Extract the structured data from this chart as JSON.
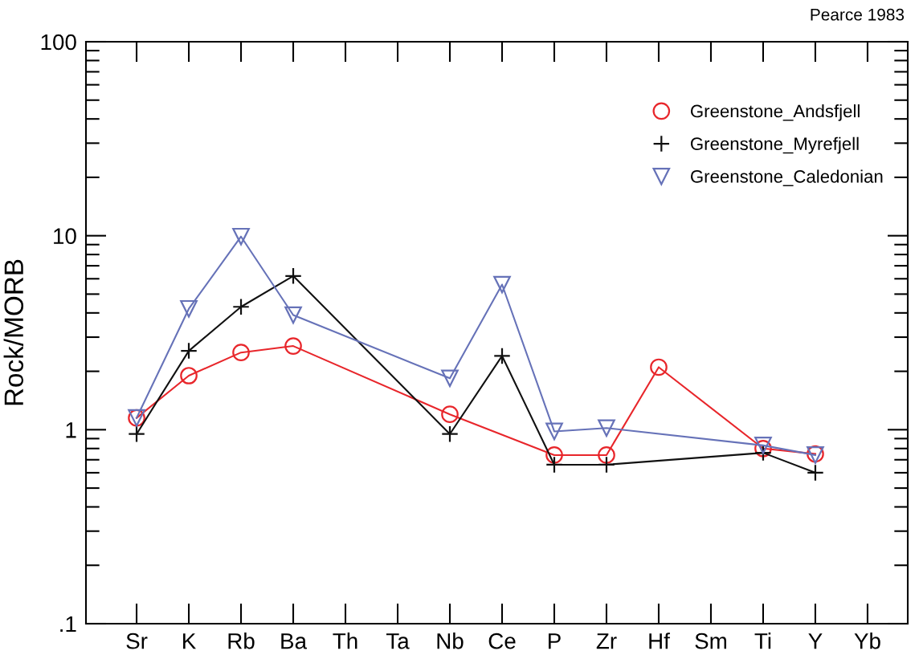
{
  "chart_data": {
    "type": "line",
    "ylabel": "Rock/MORB",
    "annotations": [
      "Pearce 1983"
    ],
    "categories": [
      "Sr",
      "K",
      "Rb",
      "Ba",
      "Th",
      "Ta",
      "Nb",
      "Ce",
      "P",
      "Zr",
      "Hf",
      "Sm",
      "Ti",
      "Y",
      "Yb"
    ],
    "log": true,
    "ylim": [
      0.1,
      100
    ],
    "yticks": [
      {
        "value": 0.1,
        "label": ".1"
      },
      1,
      10,
      100
    ],
    "grid": false,
    "legend": "top right",
    "line_style": "solid",
    "series": [
      {
        "name": "Greenstone_Andsfjell",
        "color": "#e8262b",
        "marker": "circle",
        "values": [
          1.15,
          1.9,
          2.5,
          2.7,
          null,
          null,
          1.2,
          null,
          0.74,
          0.74,
          2.1,
          null,
          0.8,
          0.75,
          null
        ]
      },
      {
        "name": "Greenstone_Myrefjell",
        "color": "#111111",
        "marker": "cross",
        "values": [
          0.95,
          2.55,
          4.3,
          6.2,
          null,
          null,
          0.95,
          2.4,
          0.66,
          0.66,
          null,
          null,
          0.76,
          0.6,
          null
        ]
      },
      {
        "name": "Greenstone_Caledonian",
        "color": "#6672b8",
        "marker": "triangle",
        "values": [
          1.15,
          4.2,
          9.9,
          3.9,
          null,
          null,
          1.84,
          5.6,
          0.98,
          1.02,
          null,
          null,
          0.83,
          0.74,
          null
        ]
      }
    ]
  }
}
